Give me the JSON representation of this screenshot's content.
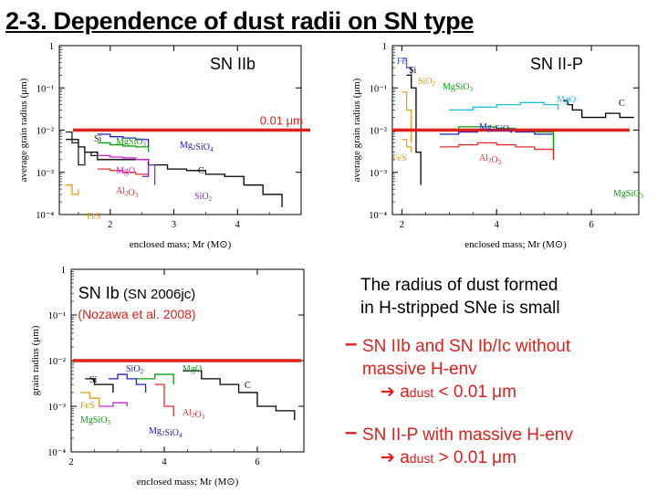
{
  "slide": {
    "title": "2-3. Dependence of dust radii on SN type"
  },
  "threshold_label": "0.01 μm",
  "chart_data": [
    {
      "type": "line",
      "panel": "SN IIb",
      "title": "SN IIb",
      "xlabel": "enclosed mass; Mr (M⊙)",
      "ylabel": "average grain radius (μm)",
      "yscale": "log",
      "xlim": [
        1.2,
        5.0
      ],
      "ylim": [
        0.0001,
        1
      ],
      "x_ticks": [
        "2",
        "3",
        "4"
      ],
      "y_ticks": [
        "1",
        "10⁻¹",
        "10⁻²",
        "10⁻³",
        "10⁻⁴"
      ],
      "reference_line_y": 0.01,
      "reference_line_label": "0.01 μm",
      "species_labels": [
        "Si",
        "MgSiO3",
        "Mg2SiO4",
        "C",
        "MgO",
        "Al2O3",
        "SiO2",
        "FeS"
      ],
      "series": [
        {
          "name": "C",
          "color": "#000000",
          "x": [
            1.3,
            1.5,
            1.6,
            1.8,
            2.2,
            2.6,
            2.9,
            3.2,
            3.5,
            3.8,
            4.1,
            4.4,
            4.7
          ],
          "y": [
            0.006,
            0.004,
            0.003,
            0.002,
            0.002,
            0.0015,
            0.0012,
            0.0011,
            0.0009,
            0.0008,
            0.0005,
            0.0003,
            0.00015
          ]
        },
        {
          "name": "Si",
          "color": "#222222",
          "x": [
            1.3,
            1.4,
            1.5,
            1.6,
            1.7,
            1.8
          ],
          "y": [
            0.009,
            0.005,
            0.0015,
            0.003,
            0.0025,
            0.002
          ]
        },
        {
          "name": "Mg2SiO4",
          "color": "#2020c0",
          "x": [
            1.8,
            2.0,
            2.2,
            2.4,
            2.6
          ],
          "y": [
            0.008,
            0.007,
            0.0065,
            0.006,
            0.004
          ]
        },
        {
          "name": "MgSiO3",
          "color": "#10a010",
          "x": [
            1.8,
            2.0,
            2.2,
            2.4,
            2.6
          ],
          "y": [
            0.005,
            0.0045,
            0.0042,
            0.004,
            0.003
          ]
        },
        {
          "name": "MgO",
          "color": "#d020d0",
          "x": [
            1.8,
            2.0,
            2.2,
            2.4,
            2.6
          ],
          "y": [
            0.0025,
            0.0023,
            0.0022,
            0.002,
            0.0018
          ]
        },
        {
          "name": "Al2O3",
          "color": "#e03030",
          "x": [
            1.8,
            2.0,
            2.2,
            2.4,
            2.6
          ],
          "y": [
            0.0012,
            0.0011,
            0.001,
            0.0009,
            0.0008
          ]
        },
        {
          "name": "SiO2",
          "color": "#8030c0",
          "x": [
            2.5,
            2.6,
            2.7
          ],
          "y": [
            0.0008,
            0.0015,
            0.0005
          ]
        },
        {
          "name": "FeS",
          "color": "#e0a020",
          "x": [
            1.3,
            1.4,
            1.5
          ],
          "y": [
            0.0005,
            0.0003,
            0.0004
          ]
        }
      ]
    },
    {
      "type": "line",
      "panel": "SN II-P",
      "title": "SN II-P",
      "xlabel": "enclosed mass; Mr (M⊙)",
      "ylabel": "average grain radius (μm)",
      "yscale": "log",
      "xlim": [
        1.8,
        7.0
      ],
      "ylim": [
        0.0001,
        1
      ],
      "x_ticks": [
        "2",
        "4",
        "6"
      ],
      "y_ticks": [
        "1",
        "10⁻¹",
        "10⁻²",
        "10⁻³",
        "10⁻⁴"
      ],
      "reference_line_y": 0.01,
      "species_labels": [
        "Fe",
        "Si",
        "SiO2",
        "MgSiO3",
        "MgO",
        "C",
        "Mg2SiO4",
        "FeS",
        "Al2O3",
        "MgSiO3"
      ],
      "series": [
        {
          "name": "C",
          "color": "#000000",
          "x": [
            5.4,
            5.5,
            5.6,
            5.8,
            6.0,
            6.3,
            6.6,
            6.9
          ],
          "y": [
            0.05,
            0.04,
            0.03,
            0.02,
            0.02,
            0.025,
            0.02,
            0.02
          ]
        },
        {
          "name": "MgO",
          "color": "#20c0e0",
          "x": [
            3.0,
            3.5,
            4.0,
            4.5,
            5.0,
            5.3
          ],
          "y": [
            0.03,
            0.035,
            0.04,
            0.045,
            0.04,
            0.03
          ]
        },
        {
          "name": "Mg2SiO4",
          "color": "#2020c0",
          "x": [
            2.8,
            3.2,
            3.6,
            4.0,
            4.4,
            4.8,
            5.2
          ],
          "y": [
            0.008,
            0.009,
            0.01,
            0.01,
            0.009,
            0.008,
            0.002
          ]
        },
        {
          "name": "MgSiO3",
          "color": "#10a010",
          "x": [
            2.8,
            3.2,
            3.6,
            4.0,
            4.4,
            4.8,
            5.2
          ],
          "y": [
            0.01,
            0.012,
            0.012,
            0.011,
            0.01,
            0.009,
            0.003
          ]
        },
        {
          "name": "Al2O3",
          "color": "#e03030",
          "x": [
            2.8,
            3.2,
            3.6,
            4.0,
            4.4,
            4.8,
            5.2
          ],
          "y": [
            0.004,
            0.0045,
            0.005,
            0.0045,
            0.004,
            0.0035,
            0.002
          ]
        },
        {
          "name": "Fe",
          "color": "#4060e0",
          "x": [
            2.0,
            2.1,
            2.2
          ],
          "y": [
            0.5,
            0.3,
            0.2
          ]
        },
        {
          "name": "Si",
          "color": "#000000",
          "x": [
            2.1,
            2.2,
            2.3,
            2.4
          ],
          "y": [
            0.2,
            0.1,
            0.003,
            0.0005
          ]
        },
        {
          "name": "SiO2",
          "color": "#e0a020",
          "x": [
            2.0,
            2.1,
            2.2
          ],
          "y": [
            0.08,
            0.03,
            0.005
          ]
        },
        {
          "name": "FeS",
          "color": "#e0a020",
          "x": [
            2.0,
            2.1,
            2.2
          ],
          "y": [
            0.006,
            0.004,
            0.003
          ]
        }
      ]
    },
    {
      "type": "line",
      "panel": "SN Ib",
      "title": "SN Ib (SN 2006jc)",
      "subtitle": "(Nozawa et al. 2008)",
      "xlabel": "enclosed mass; Mr (M⊙)",
      "ylabel": "grain radius (μm)",
      "yscale": "log",
      "xlim": [
        2.0,
        7.0
      ],
      "ylim": [
        0.0001,
        1
      ],
      "x_ticks": [
        "2",
        "4",
        "6"
      ],
      "y_ticks": [
        "1",
        "10⁻¹",
        "10⁻²",
        "10⁻³",
        "10⁻⁴"
      ],
      "reference_line_y": 0.01,
      "species_labels": [
        "Si",
        "SiO2",
        "MgO",
        "C",
        "FeS",
        "MgSiO3",
        "Al2O3",
        "Mg2SiO4"
      ],
      "series": [
        {
          "name": "C",
          "color": "#000000",
          "x": [
            4.4,
            4.8,
            5.2,
            5.6,
            6.0,
            6.4,
            6.8
          ],
          "y": [
            0.006,
            0.004,
            0.003,
            0.002,
            0.001,
            0.0008,
            0.0005
          ]
        },
        {
          "name": "Si",
          "color": "#000000",
          "x": [
            2.3,
            2.5,
            2.7,
            2.9
          ],
          "y": [
            0.004,
            0.003,
            0.003,
            0.002
          ]
        },
        {
          "name": "SiO2",
          "color": "#2020c0",
          "x": [
            2.8,
            3.0,
            3.2,
            3.4,
            3.6
          ],
          "y": [
            0.004,
            0.005,
            0.004,
            0.003,
            0.002
          ]
        },
        {
          "name": "MgO",
          "color": "#10a010",
          "x": [
            3.4,
            3.8,
            4.2
          ],
          "y": [
            0.004,
            0.005,
            0.003
          ]
        },
        {
          "name": "Al2O3",
          "color": "#e03030",
          "x": [
            3.8,
            4.0,
            4.2
          ],
          "y": [
            0.003,
            0.001,
            0.0006
          ]
        },
        {
          "name": "FeS",
          "color": "#e0a020",
          "x": [
            2.2,
            2.4,
            2.6
          ],
          "y": [
            0.002,
            0.0015,
            0.001
          ]
        },
        {
          "name": "MgSiO3",
          "color": "#d020d0",
          "x": [
            2.6,
            2.9,
            3.2
          ],
          "y": [
            0.001,
            0.0012,
            0.001
          ]
        }
      ]
    }
  ],
  "conclusion": {
    "line1": "The radius of dust formed",
    "line2": "in H-stripped SNe is small",
    "bullet1_dash": "–",
    "bullet1_line1": "SN IIb and SN Ib/Ic without",
    "bullet1_line2": "massive H-env",
    "bullet1_arrow": "➔",
    "bullet1_a": "a",
    "bullet1_sub": "dust",
    "bullet1_rel": "< 0.01 μm",
    "bullet2_dash": "–",
    "bullet2_line1": "SN II-P with massive H-env",
    "bullet2_arrow": "➔",
    "bullet2_a": "a",
    "bullet2_sub": "dust",
    "bullet2_rel": "> 0.01 μm"
  },
  "colors": {
    "threshold": "#e0201a",
    "accent_red": "#e0201a"
  }
}
